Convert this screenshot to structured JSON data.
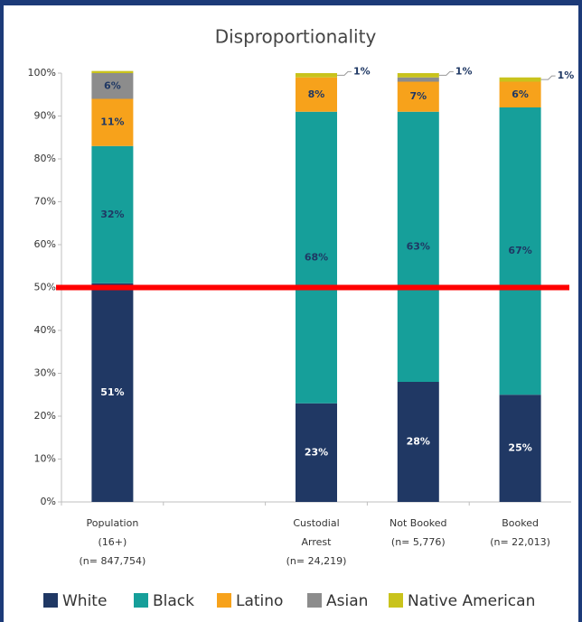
{
  "chart_data": {
    "type": "stacked_bar",
    "title": "Disproportionality",
    "categories": [
      "Population\n(16+)\n(n= 847,754)",
      null,
      "Custodial\nArrest\n(n= 24,219)",
      "Not Booked\n(n= 5,776)",
      "Booked\n(n= 22,013)"
    ],
    "series": [
      {
        "name": "White",
        "color": "#203864",
        "label_color": "#ffffff",
        "values": [
          51,
          null,
          23,
          28,
          25
        ],
        "value_labels": [
          "51%",
          null,
          "23%",
          "28%",
          "25%"
        ]
      },
      {
        "name": "Black",
        "color": "#169f9a",
        "label_color": "#1f3864",
        "values": [
          32,
          null,
          68,
          63,
          67
        ],
        "value_labels": [
          "32%",
          null,
          "68%",
          "63%",
          "67%"
        ]
      },
      {
        "name": "Latino",
        "color": "#f7a21b",
        "label_color": "#1f3864",
        "values": [
          11,
          null,
          8,
          7,
          6
        ],
        "value_labels": [
          "11%",
          null,
          "8%",
          "7%",
          "6%"
        ]
      },
      {
        "name": "Asian",
        "color": "#8c8c8c",
        "label_color": "#1f3864",
        "values": [
          6,
          null,
          0,
          1,
          0
        ],
        "value_labels": [
          "6%",
          null,
          null,
          null,
          null
        ]
      },
      {
        "name": "Native American",
        "color": "#c9c31c",
        "label_color": "#1f3864",
        "values": [
          0.5,
          null,
          1,
          1,
          1
        ],
        "value_labels": [
          null,
          null,
          "1%",
          "1%",
          "1%"
        ]
      }
    ],
    "ylim": [
      0,
      100
    ],
    "yticks": [
      {
        "value": 0,
        "label": "0%"
      },
      {
        "value": 10,
        "label": "10%"
      },
      {
        "value": 20,
        "label": "20%"
      },
      {
        "value": 30,
        "label": "30%"
      },
      {
        "value": 40,
        "label": "40%"
      },
      {
        "value": 50,
        "label": "50%"
      },
      {
        "value": 60,
        "label": "60%"
      },
      {
        "value": 70,
        "label": "70%"
      },
      {
        "value": 80,
        "label": "80%"
      },
      {
        "value": 90,
        "label": "90%"
      },
      {
        "value": 100,
        "label": "100%"
      }
    ],
    "reference_line": {
      "value": 50,
      "color": "#ff0000"
    },
    "legend": "bottom"
  }
}
